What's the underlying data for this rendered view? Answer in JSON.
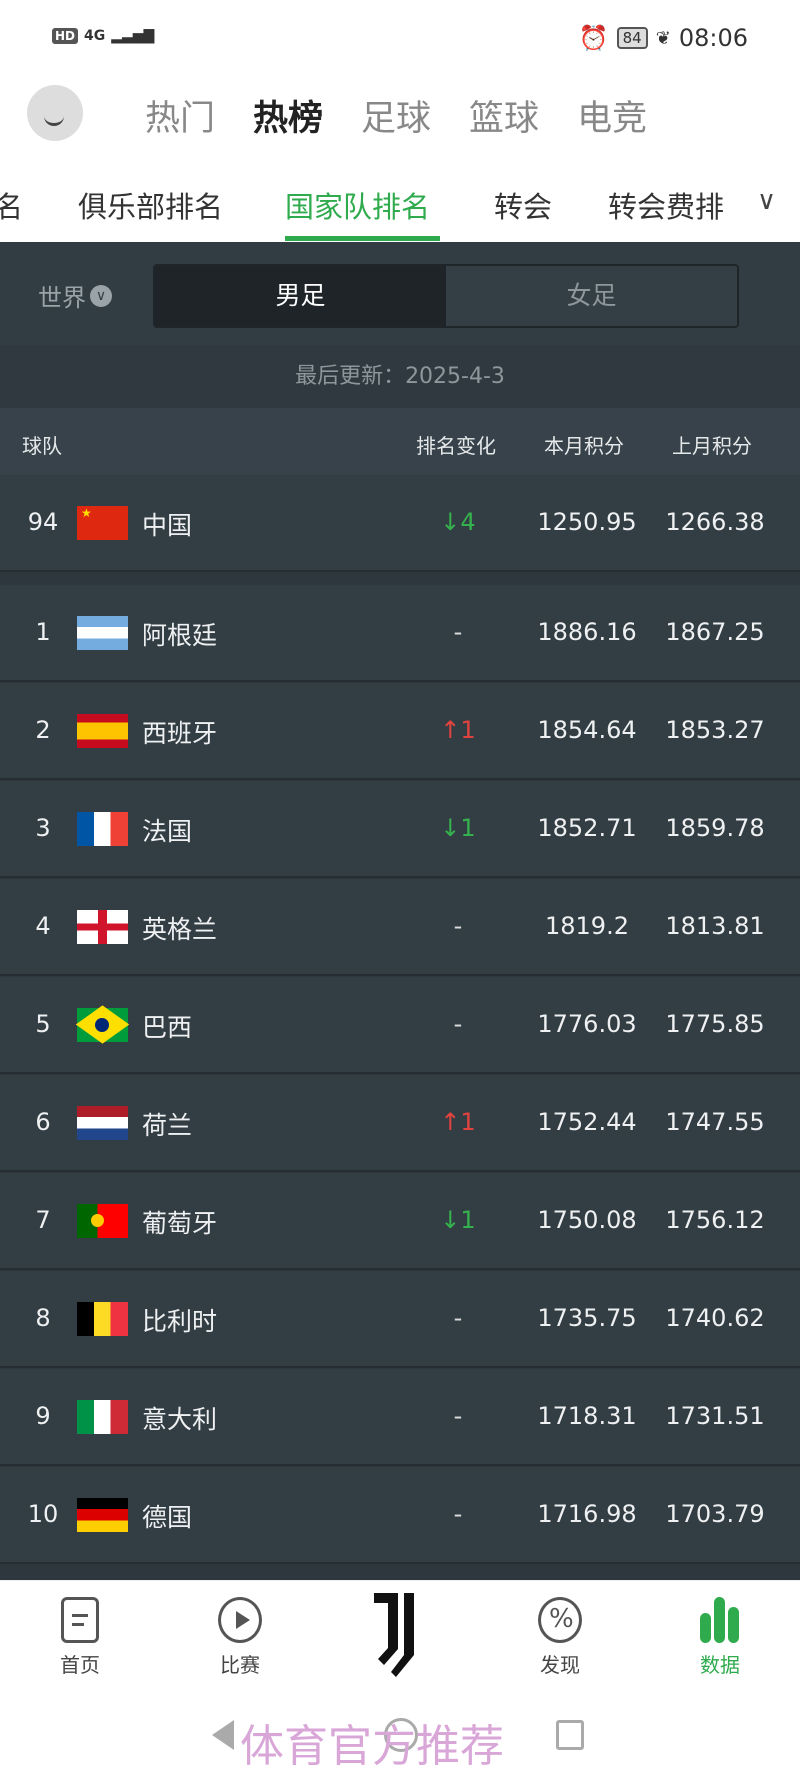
{
  "status_bar": {
    "hd": "HD",
    "network": "4G",
    "battery": "84",
    "time": "08:06"
  },
  "top_tabs": [
    {
      "label": "热门",
      "active": false
    },
    {
      "label": "热榜",
      "active": true
    },
    {
      "label": "足球",
      "active": false
    },
    {
      "label": "篮球",
      "active": false
    },
    {
      "label": "电竞",
      "active": false
    }
  ],
  "sub_tabs": [
    {
      "label": "名",
      "active": false
    },
    {
      "label": "俱乐部排名",
      "active": false
    },
    {
      "label": "国家队排名",
      "active": true
    },
    {
      "label": "转会",
      "active": false
    },
    {
      "label": "转会费排",
      "active": false
    }
  ],
  "filter": {
    "region": "世界",
    "gender_options": [
      {
        "label": "男足",
        "selected": true
      },
      {
        "label": "女足",
        "selected": false
      }
    ]
  },
  "last_update": "最后更新：2025-4-3",
  "columns": [
    "球队",
    "排名变化",
    "本月积分",
    "上月积分"
  ],
  "pinned_team": {
    "rank": "94",
    "flag": "cn",
    "name": "中国",
    "change": "↓4",
    "direction": "down",
    "current": "1250.95",
    "previous": "1266.38"
  },
  "teams": [
    {
      "rank": "1",
      "flag": "ar",
      "name": "阿根廷",
      "change": "-",
      "direction": "same",
      "current": "1886.16",
      "previous": "1867.25"
    },
    {
      "rank": "2",
      "flag": "es",
      "name": "西班牙",
      "change": "↑1",
      "direction": "up",
      "current": "1854.64",
      "previous": "1853.27"
    },
    {
      "rank": "3",
      "flag": "fr",
      "name": "法国",
      "change": "↓1",
      "direction": "down",
      "current": "1852.71",
      "previous": "1859.78"
    },
    {
      "rank": "4",
      "flag": "en",
      "name": "英格兰",
      "change": "-",
      "direction": "same",
      "current": "1819.2",
      "previous": "1813.81"
    },
    {
      "rank": "5",
      "flag": "br",
      "name": "巴西",
      "change": "-",
      "direction": "same",
      "current": "1776.03",
      "previous": "1775.85"
    },
    {
      "rank": "6",
      "flag": "nl",
      "name": "荷兰",
      "change": "↑1",
      "direction": "up",
      "current": "1752.44",
      "previous": "1747.55"
    },
    {
      "rank": "7",
      "flag": "pt",
      "name": "葡萄牙",
      "change": "↓1",
      "direction": "down",
      "current": "1750.08",
      "previous": "1756.12"
    },
    {
      "rank": "8",
      "flag": "be",
      "name": "比利时",
      "change": "-",
      "direction": "same",
      "current": "1735.75",
      "previous": "1740.62"
    },
    {
      "rank": "9",
      "flag": "it",
      "name": "意大利",
      "change": "-",
      "direction": "same",
      "current": "1718.31",
      "previous": "1731.51"
    },
    {
      "rank": "10",
      "flag": "de",
      "name": "德国",
      "change": "-",
      "direction": "same",
      "current": "1716.98",
      "previous": "1703.79"
    }
  ],
  "bottom_nav": [
    {
      "label": "首页",
      "icon": "home-icon"
    },
    {
      "label": "比赛",
      "icon": "play-icon"
    },
    {
      "label": "",
      "icon": "juventus-logo"
    },
    {
      "label": "发现",
      "icon": "discover-icon"
    },
    {
      "label": "数据",
      "icon": "data-chart-icon",
      "active": true
    }
  ],
  "watermark": "体育官方推荐",
  "colors": {
    "accent": "#2fab4e",
    "up": "#e2433f",
    "down": "#35b24d",
    "background": "#2d373d"
  }
}
